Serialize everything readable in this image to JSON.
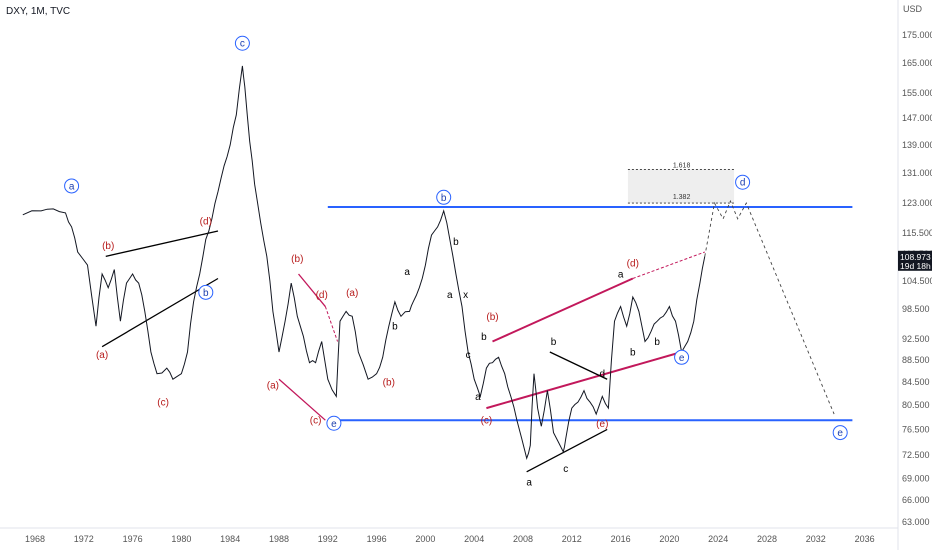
{
  "header": {
    "symbol_line": "DXY, 1M, TVC"
  },
  "colors": {
    "price": "#131722",
    "blue_line": "#2962ff",
    "red_line": "#c2185b",
    "red_label": "#b71c1c",
    "blue_label": "#1e40af",
    "black_line": "#000000",
    "grid_box": "#eeeeee",
    "price_tag_bg": "#131722"
  },
  "chart_data": {
    "type": "line",
    "price_axis_label": "USD",
    "price_ticks": [
      "175.000",
      "165.000",
      "155.000",
      "147.000",
      "139.000",
      "131.000",
      "123.000",
      "115.500",
      "110.500",
      "104.500",
      "98.500",
      "92.500",
      "88.500",
      "84.500",
      "80.500",
      "76.500",
      "72.500",
      "69.000",
      "66.000",
      "63.000"
    ],
    "tick_values": [
      175,
      165,
      155,
      147,
      139,
      131,
      123,
      115.5,
      110.5,
      104.5,
      98.5,
      92.5,
      88.5,
      84.5,
      80.5,
      76.5,
      72.5,
      69,
      66,
      63
    ],
    "time_ticks": [
      "1968",
      "1972",
      "1976",
      "1980",
      "1984",
      "1988",
      "1992",
      "1996",
      "2000",
      "2004",
      "2008",
      "2012",
      "2016",
      "2020",
      "2024",
      "2028",
      "2032",
      "2036"
    ],
    "time_values": [
      1968,
      1972,
      1976,
      1980,
      1984,
      1988,
      1992,
      1996,
      2000,
      2004,
      2008,
      2012,
      2016,
      2020,
      2024,
      2028,
      2032,
      2036
    ],
    "current_price": "108.973",
    "countdown": "19d 18h",
    "series": [
      {
        "x": [
          1967.0,
          1968.5,
          1969.5,
          1970.5,
          1971.0,
          1971.5,
          1972.3,
          1973.0,
          1973.5,
          1974.0,
          1974.5,
          1975.0,
          1975.5,
          1976.0,
          1976.5,
          1977.0,
          1977.5,
          1978.0,
          1978.8,
          1979.3,
          1980.0,
          1980.5,
          1981.0,
          1981.5,
          1982.0,
          1982.5,
          1983.0,
          1983.5,
          1984.0,
          1984.5,
          1985.0,
          1985.2,
          1985.6,
          1986.0,
          1986.5,
          1987.0,
          1987.5,
          1988.0,
          1988.5,
          1989.0,
          1989.5,
          1990.0,
          1990.5,
          1991.0,
          1991.5,
          1992.0,
          1992.7,
          1993.0,
          1993.5,
          1994.0,
          1994.5,
          1995.3,
          1996.0,
          1996.5,
          1997.0,
          1997.5,
          1998.0,
          1998.7,
          1999.0,
          1999.5,
          2000.0,
          2000.5,
          2001.0,
          2001.5,
          2002.0,
          2002.5,
          2003.0,
          2003.5,
          2004.0,
          2004.5,
          2005.0,
          2005.5,
          2006.0,
          2006.5,
          2007.0,
          2007.5,
          2008.3,
          2008.6,
          2008.9,
          2009.2,
          2009.5,
          2010.0,
          2010.5,
          2011.3,
          2011.5,
          2012.0,
          2012.5,
          2013.0,
          2013.5,
          2014.0,
          2014.5,
          2015.0,
          2015.5,
          2016.0,
          2016.5,
          2017.0,
          2017.5,
          2018.0,
          2018.5,
          2019.0,
          2019.5,
          2020.0,
          2020.5,
          2021.0,
          2021.5,
          2022.0,
          2022.5,
          2022.9
        ],
        "y": [
          120,
          121,
          121.5,
          120.5,
          117,
          111,
          108,
          95,
          106,
          103,
          107,
          96,
          104,
          106,
          104,
          98,
          90,
          86,
          87,
          85,
          86,
          90,
          100,
          106,
          114,
          119,
          126,
          133,
          139,
          148,
          164,
          157,
          140,
          128,
          118,
          110,
          98,
          90,
          96,
          104,
          97,
          93,
          88,
          88,
          92,
          85,
          82,
          96,
          98,
          97,
          90,
          85,
          86,
          89,
          95,
          100,
          97,
          98,
          100,
          103,
          108,
          115,
          117,
          121,
          114,
          106,
          99,
          90,
          85,
          82,
          87,
          88,
          89,
          86,
          82,
          78,
          72,
          74,
          86,
          80,
          77,
          83,
          76,
          73,
          75,
          80,
          81,
          83,
          81,
          79,
          82,
          80,
          96,
          99,
          95,
          101,
          98,
          92,
          94,
          96,
          97,
          99,
          96,
          90,
          92,
          96,
          104,
          110
        ]
      }
    ],
    "wave_labels": [
      {
        "text": "a",
        "x": 1971.0,
        "y": 127.5,
        "style": "circle-blue"
      },
      {
        "text": "c",
        "x": 1985.0,
        "y": 172.0,
        "style": "circle-blue"
      },
      {
        "text": "b",
        "x": 2001.5,
        "y": 124.5,
        "style": "circle-blue"
      },
      {
        "text": "d",
        "x": 2026.0,
        "y": 128.5,
        "style": "circle-blue"
      },
      {
        "text": "b",
        "x": 1982.0,
        "y": 102.0,
        "style": "circle-blue"
      },
      {
        "text": "e",
        "x": 1992.5,
        "y": 77.5,
        "style": "circle-blue"
      },
      {
        "text": "e",
        "x": 2021.0,
        "y": 89.0,
        "style": "circle-blue"
      },
      {
        "text": "e",
        "x": 2034.0,
        "y": 76.0,
        "style": "circle-blue"
      },
      {
        "text": "(a)",
        "x": 1973.5,
        "y": 89.5,
        "style": "red"
      },
      {
        "text": "(b)",
        "x": 1974.0,
        "y": 112.5,
        "style": "red"
      },
      {
        "text": "(c)",
        "x": 1978.5,
        "y": 81.0,
        "style": "red"
      },
      {
        "text": "(d)",
        "x": 1982.0,
        "y": 118.5,
        "style": "red"
      },
      {
        "text": "(a)",
        "x": 1987.5,
        "y": 84.0,
        "style": "red"
      },
      {
        "text": "(b)",
        "x": 1989.5,
        "y": 109.5,
        "style": "red"
      },
      {
        "text": "(c)",
        "x": 1991.0,
        "y": 78.0,
        "style": "red"
      },
      {
        "text": "(d)",
        "x": 1991.5,
        "y": 101.5,
        "style": "red"
      },
      {
        "text": "(a)",
        "x": 1994.0,
        "y": 102.0,
        "style": "red"
      },
      {
        "text": "(b)",
        "x": 1997.0,
        "y": 84.5,
        "style": "red"
      },
      {
        "text": "(b)",
        "x": 2005.5,
        "y": 97.0,
        "style": "red"
      },
      {
        "text": "(c)",
        "x": 2005.0,
        "y": 78.0,
        "style": "red"
      },
      {
        "text": "(d)",
        "x": 2017.0,
        "y": 108.5,
        "style": "red"
      },
      {
        "text": "(e)",
        "x": 2014.5,
        "y": 77.5,
        "style": "red"
      },
      {
        "text": "a",
        "x": 1998.5,
        "y": 106.5,
        "style": "black"
      },
      {
        "text": "b",
        "x": 2002.5,
        "y": 113.5,
        "style": "black"
      },
      {
        "text": "a",
        "x": 2002.0,
        "y": 101.5,
        "style": "black"
      },
      {
        "text": "x",
        "x": 2003.3,
        "y": 101.5,
        "style": "black"
      },
      {
        "text": "b",
        "x": 1997.5,
        "y": 95.0,
        "style": "black"
      },
      {
        "text": "b",
        "x": 2004.8,
        "y": 93.0,
        "style": "black"
      },
      {
        "text": "c",
        "x": 2003.5,
        "y": 89.5,
        "style": "black"
      },
      {
        "text": "a",
        "x": 2004.3,
        "y": 82.0,
        "style": "black"
      },
      {
        "text": "b",
        "x": 2010.5,
        "y": 92.0,
        "style": "black"
      },
      {
        "text": "d",
        "x": 2014.5,
        "y": 86.0,
        "style": "black"
      },
      {
        "text": "a",
        "x": 2008.5,
        "y": 68.5,
        "style": "black"
      },
      {
        "text": "c",
        "x": 2011.5,
        "y": 70.5,
        "style": "black"
      },
      {
        "text": "a",
        "x": 2016.0,
        "y": 106.0,
        "style": "black"
      },
      {
        "text": "b",
        "x": 2017.0,
        "y": 90.0,
        "style": "black"
      },
      {
        "text": "b",
        "x": 2019.0,
        "y": 92.0,
        "style": "black"
      }
    ],
    "fib_labels": [
      {
        "text": "1.618",
        "y": 132.0
      },
      {
        "text": "1.382",
        "y": 123.5
      }
    ]
  }
}
